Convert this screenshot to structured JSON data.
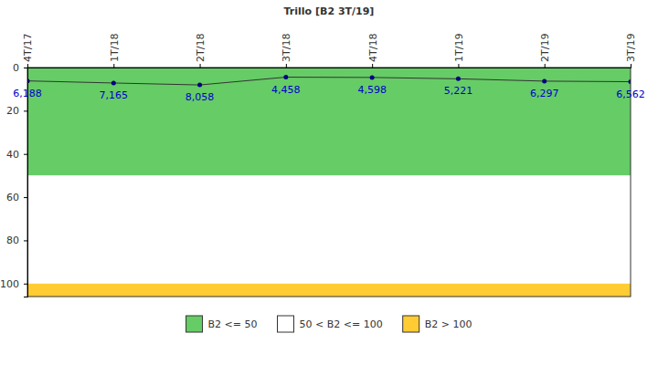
{
  "chart_data": {
    "type": "line",
    "title": "Trillo [B2 3T/19]",
    "categories": [
      "4T/17",
      "1T/18",
      "2T/18",
      "3T/18",
      "4T/18",
      "1T/19",
      "2T/19",
      "3T/19"
    ],
    "values": [
      6.188,
      7.165,
      8.058,
      4.458,
      4.598,
      5.221,
      6.297,
      6.562
    ],
    "value_labels": [
      "6,188",
      "7,165",
      "8,058",
      "4,458",
      "4,598",
      "5,221",
      "6,297",
      "6,562"
    ],
    "color": "#000080",
    "marker": "circle",
    "data_labels": true,
    "ylim": [
      0,
      106
    ],
    "yticks": [
      0,
      20,
      40,
      60,
      80,
      100
    ],
    "bands": [
      {
        "from": 0,
        "to": 50,
        "color": "#66cc66",
        "label": "B2 <= 50"
      },
      {
        "from": 50,
        "to": 100,
        "color": "#ffffff",
        "label": "50 < B2 <= 100"
      },
      {
        "from": 100,
        "to": 106,
        "color": "#ffcc33",
        "label": "B2 > 100"
      }
    ],
    "legend": "bottom"
  }
}
